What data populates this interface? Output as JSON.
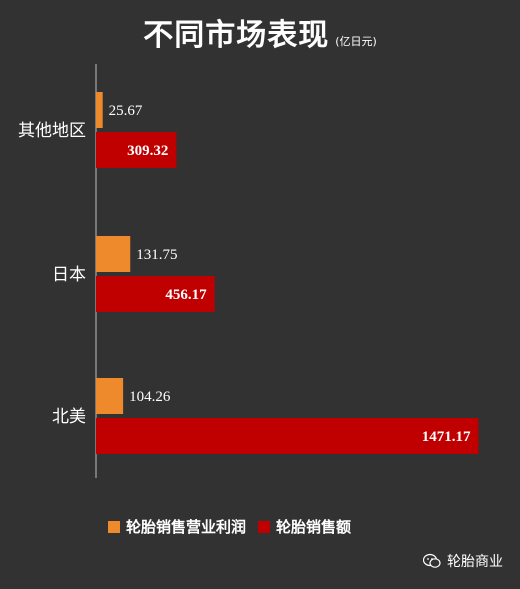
{
  "title": "不同市场表现",
  "unit": "(亿日元)",
  "watermark": "轮胎商业",
  "colors": {
    "background": "#333232",
    "profit": "#ef8a2c",
    "sales": "#c00000",
    "text": "#ffffff"
  },
  "chart_data": {
    "type": "bar",
    "orientation": "horizontal",
    "title": "不同市场表现",
    "unit": "(亿日元)",
    "categories": [
      "其他地区",
      "日本",
      "北美"
    ],
    "series": [
      {
        "name": "轮胎销售营业利润",
        "values": [
          25.67,
          131.75,
          104.26
        ],
        "labels": [
          "25.67",
          "131.75",
          "104.26"
        ]
      },
      {
        "name": "轮胎销售额",
        "values": [
          309.32,
          456.17,
          1471.17
        ],
        "labels": [
          "309.32",
          "456.17",
          "1471.17"
        ]
      }
    ],
    "legend_position": "bottom",
    "grid": false
  }
}
